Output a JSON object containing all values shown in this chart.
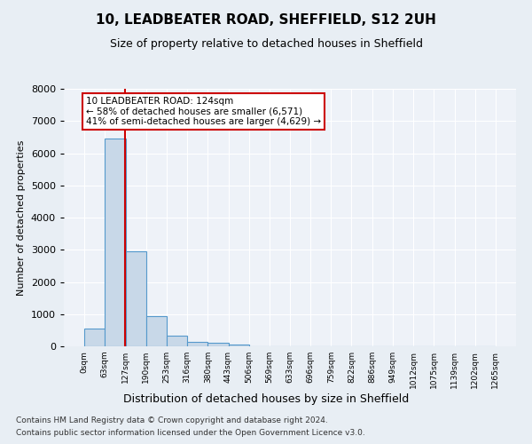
{
  "title1": "10, LEADBEATER ROAD, SHEFFIELD, S12 2UH",
  "title2": "Size of property relative to detached houses in Sheffield",
  "xlabel": "Distribution of detached houses by size in Sheffield",
  "ylabel": "Number of detached properties",
  "bin_edges": [
    0,
    63,
    127,
    190,
    253,
    316,
    380,
    443,
    506,
    569,
    633,
    696,
    759,
    822,
    886,
    949,
    1012,
    1075,
    1139,
    1202,
    1265
  ],
  "bar_values": [
    550,
    6450,
    2950,
    950,
    340,
    150,
    100,
    65,
    0,
    0,
    0,
    0,
    0,
    0,
    0,
    0,
    0,
    0,
    0,
    0
  ],
  "bar_color": "#c8d8e8",
  "bar_edgecolor": "#5599cc",
  "property_size": 124,
  "vline_color": "#cc0000",
  "annotation_line1": "10 LEADBEATER ROAD: 124sqm",
  "annotation_line2": "← 58% of detached houses are smaller (6,571)",
  "annotation_line3": "41% of semi-detached houses are larger (4,629) →",
  "annotation_box_color": "#ffffff",
  "annotation_box_edgecolor": "#cc0000",
  "ylim": [
    0,
    8000
  ],
  "yticks": [
    0,
    1000,
    2000,
    3000,
    4000,
    5000,
    6000,
    7000,
    8000
  ],
  "footer1": "Contains HM Land Registry data © Crown copyright and database right 2024.",
  "footer2": "Contains public sector information licensed under the Open Government Licence v3.0.",
  "bg_color": "#e8eef4",
  "plot_bg_color": "#eef2f8",
  "title1_fontsize": 11,
  "title2_fontsize": 9,
  "footer_fontsize": 6.5
}
